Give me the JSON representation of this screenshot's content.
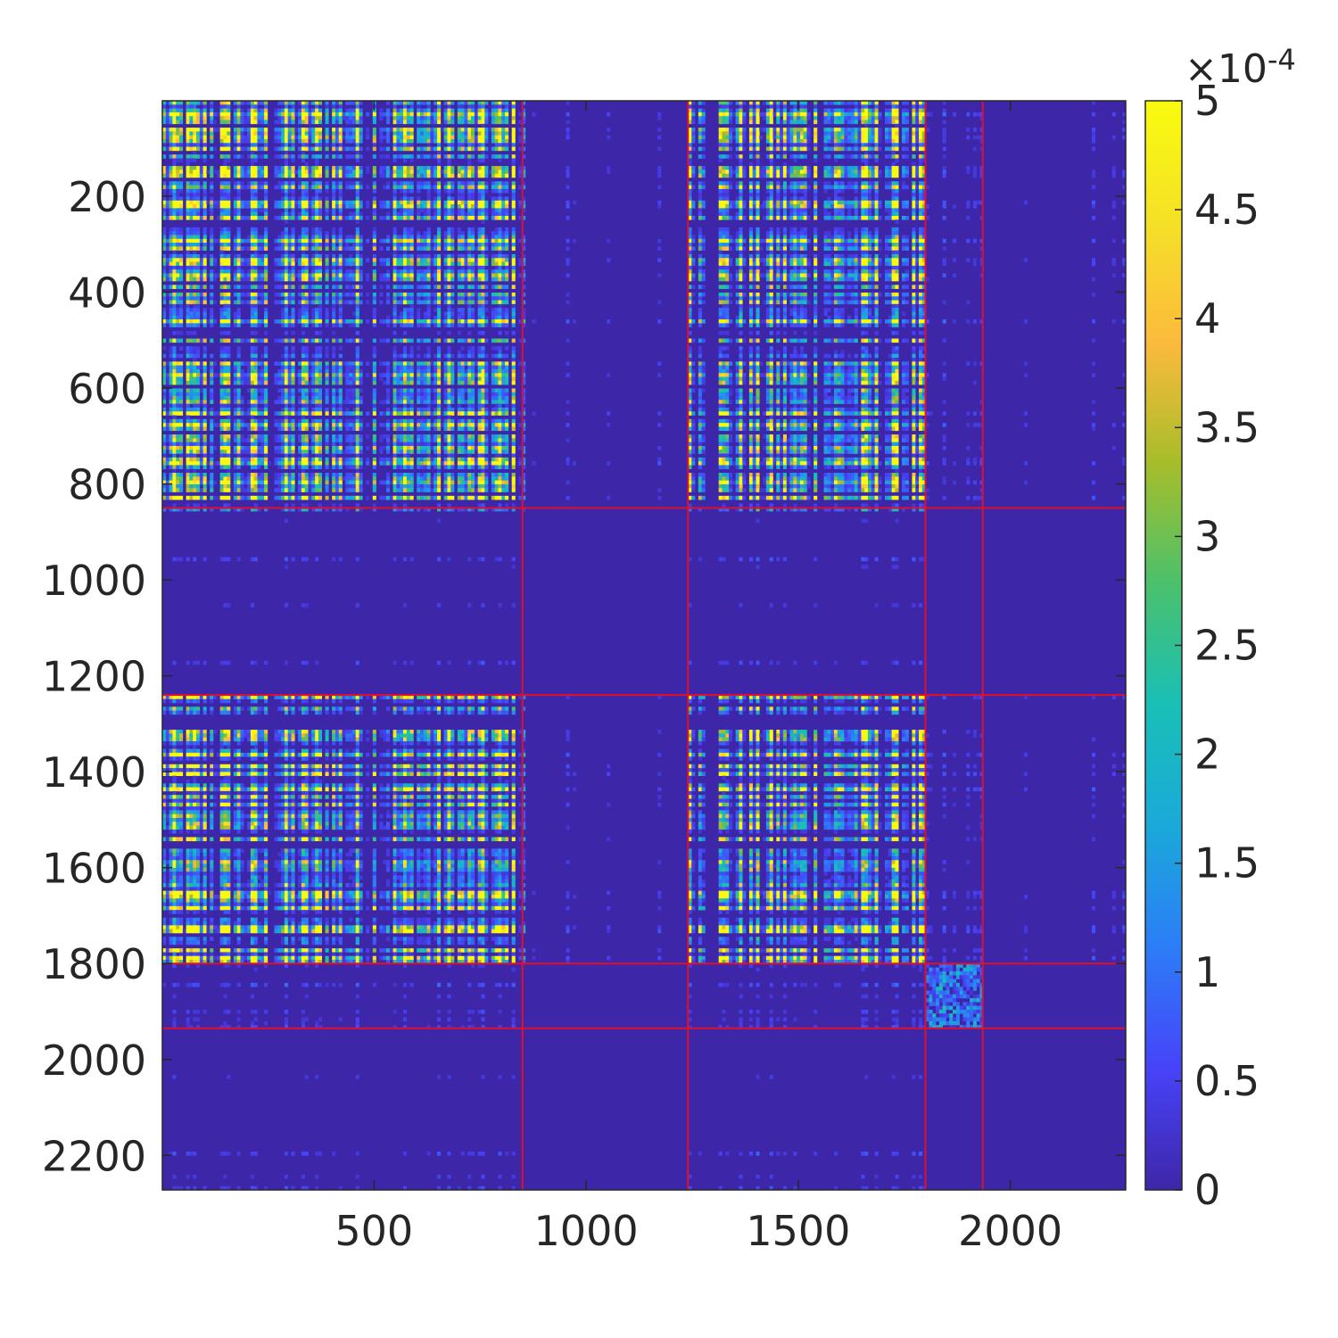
{
  "chart_data": {
    "type": "heatmap",
    "title": "",
    "xlabel": "",
    "ylabel": "",
    "x_range": [
      1,
      2272
    ],
    "y_range": [
      1,
      2272
    ],
    "x_ticks": [
      500,
      1000,
      1500,
      2000
    ],
    "x_tick_labels": [
      "500",
      "1000",
      "1500",
      "2000"
    ],
    "y_ticks": [
      200,
      400,
      600,
      800,
      1000,
      1200,
      1400,
      1600,
      1800,
      2000,
      2200
    ],
    "y_tick_labels": [
      "200",
      "400",
      "600",
      "800",
      "1000",
      "1200",
      "1400",
      "1600",
      "1800",
      "2000",
      "2200"
    ],
    "y_direction": "reverse",
    "colormap": "parula",
    "colormap_stops": [
      "#3e26a8",
      "#4743f8",
      "#2c7df7",
      "#1ba9da",
      "#19bfb7",
      "#4ac16d",
      "#a6bd2b",
      "#fcba3d",
      "#f5e127",
      "#f9fb0e"
    ],
    "color_range": [
      0,
      0.0005
    ],
    "colorbar": {
      "ticks": [
        0,
        0.5,
        1,
        1.5,
        2,
        2.5,
        3,
        3.5,
        4,
        4.5,
        5
      ],
      "tick_labels": [
        "0",
        "0.5",
        "1",
        "1.5",
        "2",
        "2.5",
        "3",
        "3.5",
        "4",
        "4.5",
        "5"
      ],
      "exponent_prefix": "×10",
      "exponent": "-4",
      "location": "right"
    },
    "block_boundaries": [
      850,
      1240,
      1800,
      1935
    ],
    "boundary_color": "#e0102a",
    "grid": false
  }
}
